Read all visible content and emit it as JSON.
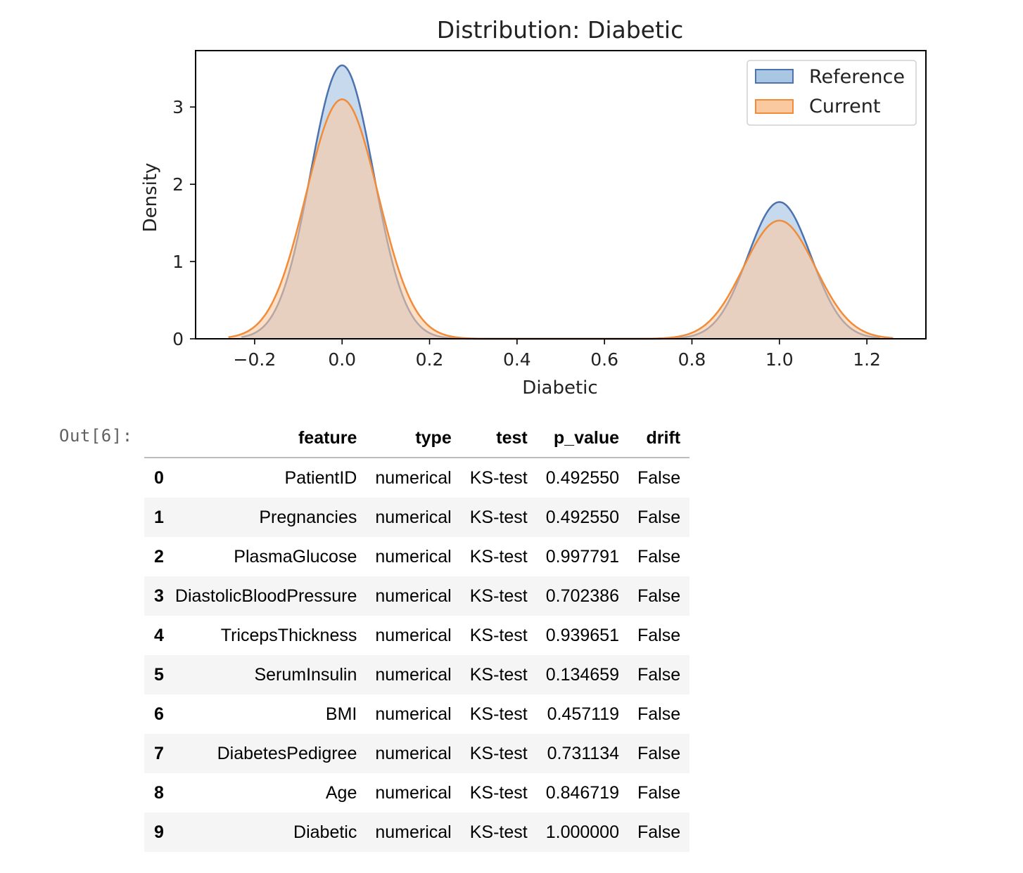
{
  "chart_data": {
    "type": "area",
    "title": "Distribution: Diabetic",
    "xlabel": "Diabetic",
    "ylabel": "Density",
    "xlim": [
      -0.335,
      1.335
    ],
    "ylim": [
      0,
      3.73
    ],
    "xticks": [
      -0.2,
      0.0,
      0.2,
      0.4,
      0.6,
      0.8,
      1.0,
      1.2
    ],
    "xtick_labels": [
      "−0.2",
      "0.0",
      "0.2",
      "0.4",
      "0.6",
      "0.8",
      "1.0",
      "1.2"
    ],
    "yticks": [
      0,
      1,
      2,
      3
    ],
    "ytick_labels": [
      "0",
      "1",
      "2",
      "3"
    ],
    "grid": false,
    "legend_position": "top-right",
    "series": [
      {
        "name": "Reference",
        "color": "#4c72b0",
        "fill": "#a9c6e3",
        "x_range": [
          -0.23,
          1.23
        ],
        "components": [
          {
            "mean": 0.0,
            "sd": 0.072,
            "peak": 3.54
          },
          {
            "mean": 1.0,
            "sd": 0.072,
            "peak": 1.77
          }
        ]
      },
      {
        "name": "Current",
        "color": "#f08c3a",
        "fill": "#fbc9a0",
        "x_range": [
          -0.26,
          1.26
        ],
        "components": [
          {
            "mean": 0.0,
            "sd": 0.082,
            "peak": 3.1
          },
          {
            "mean": 1.0,
            "sd": 0.082,
            "peak": 1.53
          }
        ]
      }
    ]
  },
  "output_prompt": "Out[6]:",
  "table": {
    "columns": [
      "feature",
      "type",
      "test",
      "p_value",
      "drift"
    ],
    "rows": [
      {
        "index": "0",
        "feature": "PatientID",
        "type": "numerical",
        "test": "KS-test",
        "p_value": "0.492550",
        "drift": "False"
      },
      {
        "index": "1",
        "feature": "Pregnancies",
        "type": "numerical",
        "test": "KS-test",
        "p_value": "0.492550",
        "drift": "False"
      },
      {
        "index": "2",
        "feature": "PlasmaGlucose",
        "type": "numerical",
        "test": "KS-test",
        "p_value": "0.997791",
        "drift": "False"
      },
      {
        "index": "3",
        "feature": "DiastolicBloodPressure",
        "type": "numerical",
        "test": "KS-test",
        "p_value": "0.702386",
        "drift": "False"
      },
      {
        "index": "4",
        "feature": "TricepsThickness",
        "type": "numerical",
        "test": "KS-test",
        "p_value": "0.939651",
        "drift": "False"
      },
      {
        "index": "5",
        "feature": "SerumInsulin",
        "type": "numerical",
        "test": "KS-test",
        "p_value": "0.134659",
        "drift": "False"
      },
      {
        "index": "6",
        "feature": "BMI",
        "type": "numerical",
        "test": "KS-test",
        "p_value": "0.457119",
        "drift": "False"
      },
      {
        "index": "7",
        "feature": "DiabetesPedigree",
        "type": "numerical",
        "test": "KS-test",
        "p_value": "0.731134",
        "drift": "False"
      },
      {
        "index": "8",
        "feature": "Age",
        "type": "numerical",
        "test": "KS-test",
        "p_value": "0.846719",
        "drift": "False"
      },
      {
        "index": "9",
        "feature": "Diabetic",
        "type": "numerical",
        "test": "KS-test",
        "p_value": "1.000000",
        "drift": "False"
      }
    ]
  }
}
